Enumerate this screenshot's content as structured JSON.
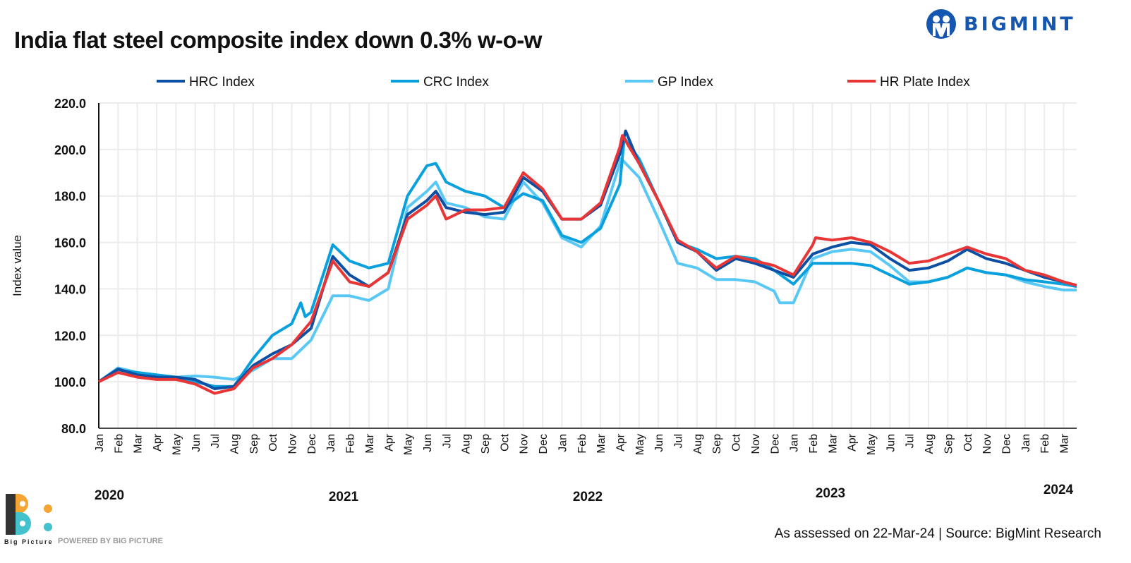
{
  "title": "India flat steel composite index down 0.3% w-o-w",
  "brand": {
    "logo_text": "BIGMINT",
    "logo_color": "#1557b0"
  },
  "footer": {
    "text": "As assessed on 22-Mar-24  |  Source: BigMint Research"
  },
  "powered_by": {
    "logo_text": "Big Picture",
    "label": "POWERED BY BIG PICTURE"
  },
  "chart_data": {
    "type": "line",
    "title": "India flat steel composite index down 0.3% w-o-w",
    "xlabel": "",
    "ylabel": "Index value",
    "ylim": [
      80,
      220
    ],
    "yticks": [
      "80.0",
      "100.0",
      "120.0",
      "140.0",
      "160.0",
      "180.0",
      "200.0",
      "220.0"
    ],
    "xlim": [
      "2020-01-01",
      "2024-03-22"
    ],
    "month_labels": [
      "Jan",
      "Feb",
      "Mar",
      "Apr",
      "May",
      "Jun",
      "Jul",
      "Aug",
      "Sep",
      "Oct",
      "Nov",
      "Dec",
      "Jan",
      "Feb",
      "Mar",
      "Apr",
      "May",
      "Jun",
      "Jul",
      "Aug",
      "Sep",
      "Oct",
      "Nov",
      "Dec",
      "Jan",
      "Feb",
      "Mar",
      "Apr",
      "May",
      "Jun",
      "Jul",
      "Aug",
      "Sep",
      "Oct",
      "Nov",
      "Dec",
      "Jan",
      "Feb",
      "Mar",
      "Apr",
      "May",
      "Jun",
      "Jul",
      "Aug",
      "Sep",
      "Oct",
      "Nov",
      "Dec",
      "Jan",
      "Feb",
      "Mar"
    ],
    "year_labels": [
      "2020",
      "2021",
      "2022",
      "2023",
      "2024"
    ],
    "grid": true,
    "legend": "top",
    "series": [
      {
        "name": "HRC Index",
        "color": "#0d4fa3",
        "points": [
          [
            "2020-01-01",
            100
          ],
          [
            "2020-02-01",
            105.5
          ],
          [
            "2020-03-01",
            103
          ],
          [
            "2020-04-01",
            102
          ],
          [
            "2020-05-01",
            102
          ],
          [
            "2020-06-01",
            101
          ],
          [
            "2020-07-01",
            97
          ],
          [
            "2020-08-01",
            98
          ],
          [
            "2020-09-01",
            107
          ],
          [
            "2020-10-01",
            112
          ],
          [
            "2020-11-01",
            116
          ],
          [
            "2020-12-01",
            123
          ],
          [
            "2021-01-05",
            154
          ],
          [
            "2021-02-01",
            146
          ],
          [
            "2021-03-01",
            141
          ],
          [
            "2021-04-01",
            147
          ],
          [
            "2021-05-01",
            172
          ],
          [
            "2021-06-01",
            178
          ],
          [
            "2021-06-15",
            182
          ],
          [
            "2021-07-01",
            175
          ],
          [
            "2021-08-01",
            173
          ],
          [
            "2021-09-01",
            172
          ],
          [
            "2021-10-01",
            173
          ],
          [
            "2021-11-01",
            188
          ],
          [
            "2021-12-01",
            182
          ],
          [
            "2022-01-01",
            170
          ],
          [
            "2022-02-01",
            170
          ],
          [
            "2022-03-01",
            176
          ],
          [
            "2022-04-01",
            198
          ],
          [
            "2022-04-10",
            208
          ],
          [
            "2022-05-01",
            194
          ],
          [
            "2022-06-01",
            178
          ],
          [
            "2022-07-01",
            160
          ],
          [
            "2022-08-01",
            156
          ],
          [
            "2022-09-01",
            148
          ],
          [
            "2022-10-01",
            153
          ],
          [
            "2022-11-01",
            151
          ],
          [
            "2022-12-01",
            148
          ],
          [
            "2023-01-01",
            145
          ],
          [
            "2023-02-01",
            155
          ],
          [
            "2023-03-01",
            158
          ],
          [
            "2023-04-01",
            160
          ],
          [
            "2023-05-01",
            159
          ],
          [
            "2023-06-01",
            153
          ],
          [
            "2023-07-01",
            148
          ],
          [
            "2023-08-01",
            149
          ],
          [
            "2023-09-01",
            152
          ],
          [
            "2023-10-01",
            157
          ],
          [
            "2023-11-01",
            153
          ],
          [
            "2023-12-01",
            151
          ],
          [
            "2024-01-01",
            148
          ],
          [
            "2024-02-01",
            145
          ],
          [
            "2024-03-01",
            143
          ],
          [
            "2024-03-22",
            141.5
          ]
        ]
      },
      {
        "name": "CRC Index",
        "color": "#0aa0de",
        "points": [
          [
            "2020-01-01",
            100
          ],
          [
            "2020-02-01",
            105
          ],
          [
            "2020-03-01",
            104
          ],
          [
            "2020-04-01",
            103
          ],
          [
            "2020-05-01",
            102
          ],
          [
            "2020-06-01",
            100
          ],
          [
            "2020-07-01",
            98
          ],
          [
            "2020-08-01",
            98
          ],
          [
            "2020-09-01",
            110
          ],
          [
            "2020-10-01",
            120
          ],
          [
            "2020-11-01",
            125
          ],
          [
            "2020-11-15",
            134
          ],
          [
            "2020-11-22",
            128
          ],
          [
            "2020-12-01",
            130
          ],
          [
            "2021-01-05",
            159
          ],
          [
            "2021-02-01",
            152
          ],
          [
            "2021-03-01",
            149
          ],
          [
            "2021-04-01",
            151
          ],
          [
            "2021-05-01",
            180
          ],
          [
            "2021-06-01",
            193
          ],
          [
            "2021-06-15",
            194
          ],
          [
            "2021-07-01",
            186
          ],
          [
            "2021-08-01",
            182
          ],
          [
            "2021-09-01",
            180
          ],
          [
            "2021-10-01",
            175
          ],
          [
            "2021-11-01",
            181
          ],
          [
            "2021-12-01",
            178
          ],
          [
            "2022-01-01",
            163
          ],
          [
            "2022-02-01",
            160
          ],
          [
            "2022-03-01",
            166
          ],
          [
            "2022-04-01",
            185
          ],
          [
            "2022-04-08",
            205
          ],
          [
            "2022-05-01",
            196
          ],
          [
            "2022-06-01",
            178
          ],
          [
            "2022-07-01",
            160
          ],
          [
            "2022-08-01",
            157
          ],
          [
            "2022-09-01",
            153
          ],
          [
            "2022-10-01",
            154
          ],
          [
            "2022-11-01",
            153
          ],
          [
            "2022-12-01",
            148
          ],
          [
            "2023-01-01",
            142
          ],
          [
            "2023-02-01",
            151
          ],
          [
            "2023-03-01",
            151
          ],
          [
            "2023-04-01",
            151
          ],
          [
            "2023-05-01",
            150
          ],
          [
            "2023-06-01",
            146
          ],
          [
            "2023-07-01",
            142
          ],
          [
            "2023-08-01",
            143
          ],
          [
            "2023-09-01",
            145
          ],
          [
            "2023-10-01",
            149
          ],
          [
            "2023-11-01",
            147
          ],
          [
            "2023-12-01",
            146
          ],
          [
            "2024-01-01",
            144
          ],
          [
            "2024-02-01",
            143
          ],
          [
            "2024-03-01",
            142
          ],
          [
            "2024-03-22",
            141
          ]
        ]
      },
      {
        "name": "GP Index",
        "color": "#5ac8f5",
        "points": [
          [
            "2020-01-01",
            100
          ],
          [
            "2020-02-01",
            106
          ],
          [
            "2020-03-01",
            104
          ],
          [
            "2020-04-01",
            103
          ],
          [
            "2020-05-01",
            102
          ],
          [
            "2020-06-01",
            102.5
          ],
          [
            "2020-07-01",
            102
          ],
          [
            "2020-08-01",
            101
          ],
          [
            "2020-09-01",
            105
          ],
          [
            "2020-10-01",
            110
          ],
          [
            "2020-11-01",
            110
          ],
          [
            "2020-12-01",
            118
          ],
          [
            "2021-01-05",
            137
          ],
          [
            "2021-02-01",
            137
          ],
          [
            "2021-03-01",
            135
          ],
          [
            "2021-04-01",
            140
          ],
          [
            "2021-05-01",
            175
          ],
          [
            "2021-06-01",
            182
          ],
          [
            "2021-06-15",
            186
          ],
          [
            "2021-07-01",
            177
          ],
          [
            "2021-08-01",
            175
          ],
          [
            "2021-09-01",
            171
          ],
          [
            "2021-10-01",
            170
          ],
          [
            "2021-11-01",
            186
          ],
          [
            "2021-12-01",
            177
          ],
          [
            "2022-01-01",
            162
          ],
          [
            "2022-02-01",
            158
          ],
          [
            "2022-03-01",
            167
          ],
          [
            "2022-04-03",
            196
          ],
          [
            "2022-05-01",
            188
          ],
          [
            "2022-06-01",
            170
          ],
          [
            "2022-07-01",
            151
          ],
          [
            "2022-08-01",
            149
          ],
          [
            "2022-09-01",
            144
          ],
          [
            "2022-10-01",
            144
          ],
          [
            "2022-11-01",
            143
          ],
          [
            "2022-12-01",
            139
          ],
          [
            "2022-12-10",
            134
          ],
          [
            "2023-01-01",
            134
          ],
          [
            "2023-02-01",
            153
          ],
          [
            "2023-03-01",
            156
          ],
          [
            "2023-04-01",
            157
          ],
          [
            "2023-05-01",
            156
          ],
          [
            "2023-06-01",
            150
          ],
          [
            "2023-07-01",
            143
          ],
          [
            "2023-08-01",
            143
          ],
          [
            "2023-09-01",
            145
          ],
          [
            "2023-10-01",
            149
          ],
          [
            "2023-11-01",
            147
          ],
          [
            "2023-12-01",
            146
          ],
          [
            "2024-01-01",
            143
          ],
          [
            "2024-02-01",
            141
          ],
          [
            "2024-03-01",
            139.5
          ],
          [
            "2024-03-22",
            139.5
          ]
        ]
      },
      {
        "name": "HR Plate Index",
        "color": "#e83535",
        "points": [
          [
            "2020-01-01",
            100
          ],
          [
            "2020-02-01",
            104
          ],
          [
            "2020-03-01",
            102
          ],
          [
            "2020-04-01",
            101
          ],
          [
            "2020-05-01",
            101
          ],
          [
            "2020-06-01",
            99
          ],
          [
            "2020-07-01",
            95
          ],
          [
            "2020-08-01",
            97
          ],
          [
            "2020-09-01",
            106
          ],
          [
            "2020-10-01",
            110
          ],
          [
            "2020-11-01",
            116
          ],
          [
            "2020-12-01",
            126
          ],
          [
            "2021-01-05",
            152
          ],
          [
            "2021-02-01",
            143
          ],
          [
            "2021-03-01",
            141
          ],
          [
            "2021-04-01",
            147
          ],
          [
            "2021-05-01",
            170
          ],
          [
            "2021-06-01",
            176
          ],
          [
            "2021-06-15",
            180
          ],
          [
            "2021-07-01",
            170
          ],
          [
            "2021-08-01",
            174
          ],
          [
            "2021-09-01",
            174
          ],
          [
            "2021-10-01",
            175
          ],
          [
            "2021-11-01",
            190
          ],
          [
            "2021-12-01",
            183
          ],
          [
            "2022-01-01",
            170
          ],
          [
            "2022-02-01",
            170
          ],
          [
            "2022-03-01",
            177
          ],
          [
            "2022-04-01",
            201
          ],
          [
            "2022-04-05",
            206
          ],
          [
            "2022-05-01",
            194
          ],
          [
            "2022-06-01",
            178
          ],
          [
            "2022-07-01",
            161
          ],
          [
            "2022-08-01",
            156
          ],
          [
            "2022-09-01",
            149
          ],
          [
            "2022-10-01",
            154
          ],
          [
            "2022-11-01",
            152
          ],
          [
            "2022-12-01",
            150
          ],
          [
            "2023-01-01",
            146
          ],
          [
            "2023-02-01",
            159
          ],
          [
            "2023-02-05",
            162
          ],
          [
            "2023-03-01",
            161
          ],
          [
            "2023-04-01",
            162
          ],
          [
            "2023-05-01",
            160
          ],
          [
            "2023-06-01",
            156
          ],
          [
            "2023-07-01",
            151
          ],
          [
            "2023-08-01",
            152
          ],
          [
            "2023-09-01",
            155
          ],
          [
            "2023-10-01",
            158
          ],
          [
            "2023-11-01",
            155
          ],
          [
            "2023-12-01",
            153
          ],
          [
            "2024-01-01",
            148
          ],
          [
            "2024-02-01",
            146
          ],
          [
            "2024-03-01",
            143
          ],
          [
            "2024-03-22",
            141.5
          ]
        ]
      }
    ]
  }
}
